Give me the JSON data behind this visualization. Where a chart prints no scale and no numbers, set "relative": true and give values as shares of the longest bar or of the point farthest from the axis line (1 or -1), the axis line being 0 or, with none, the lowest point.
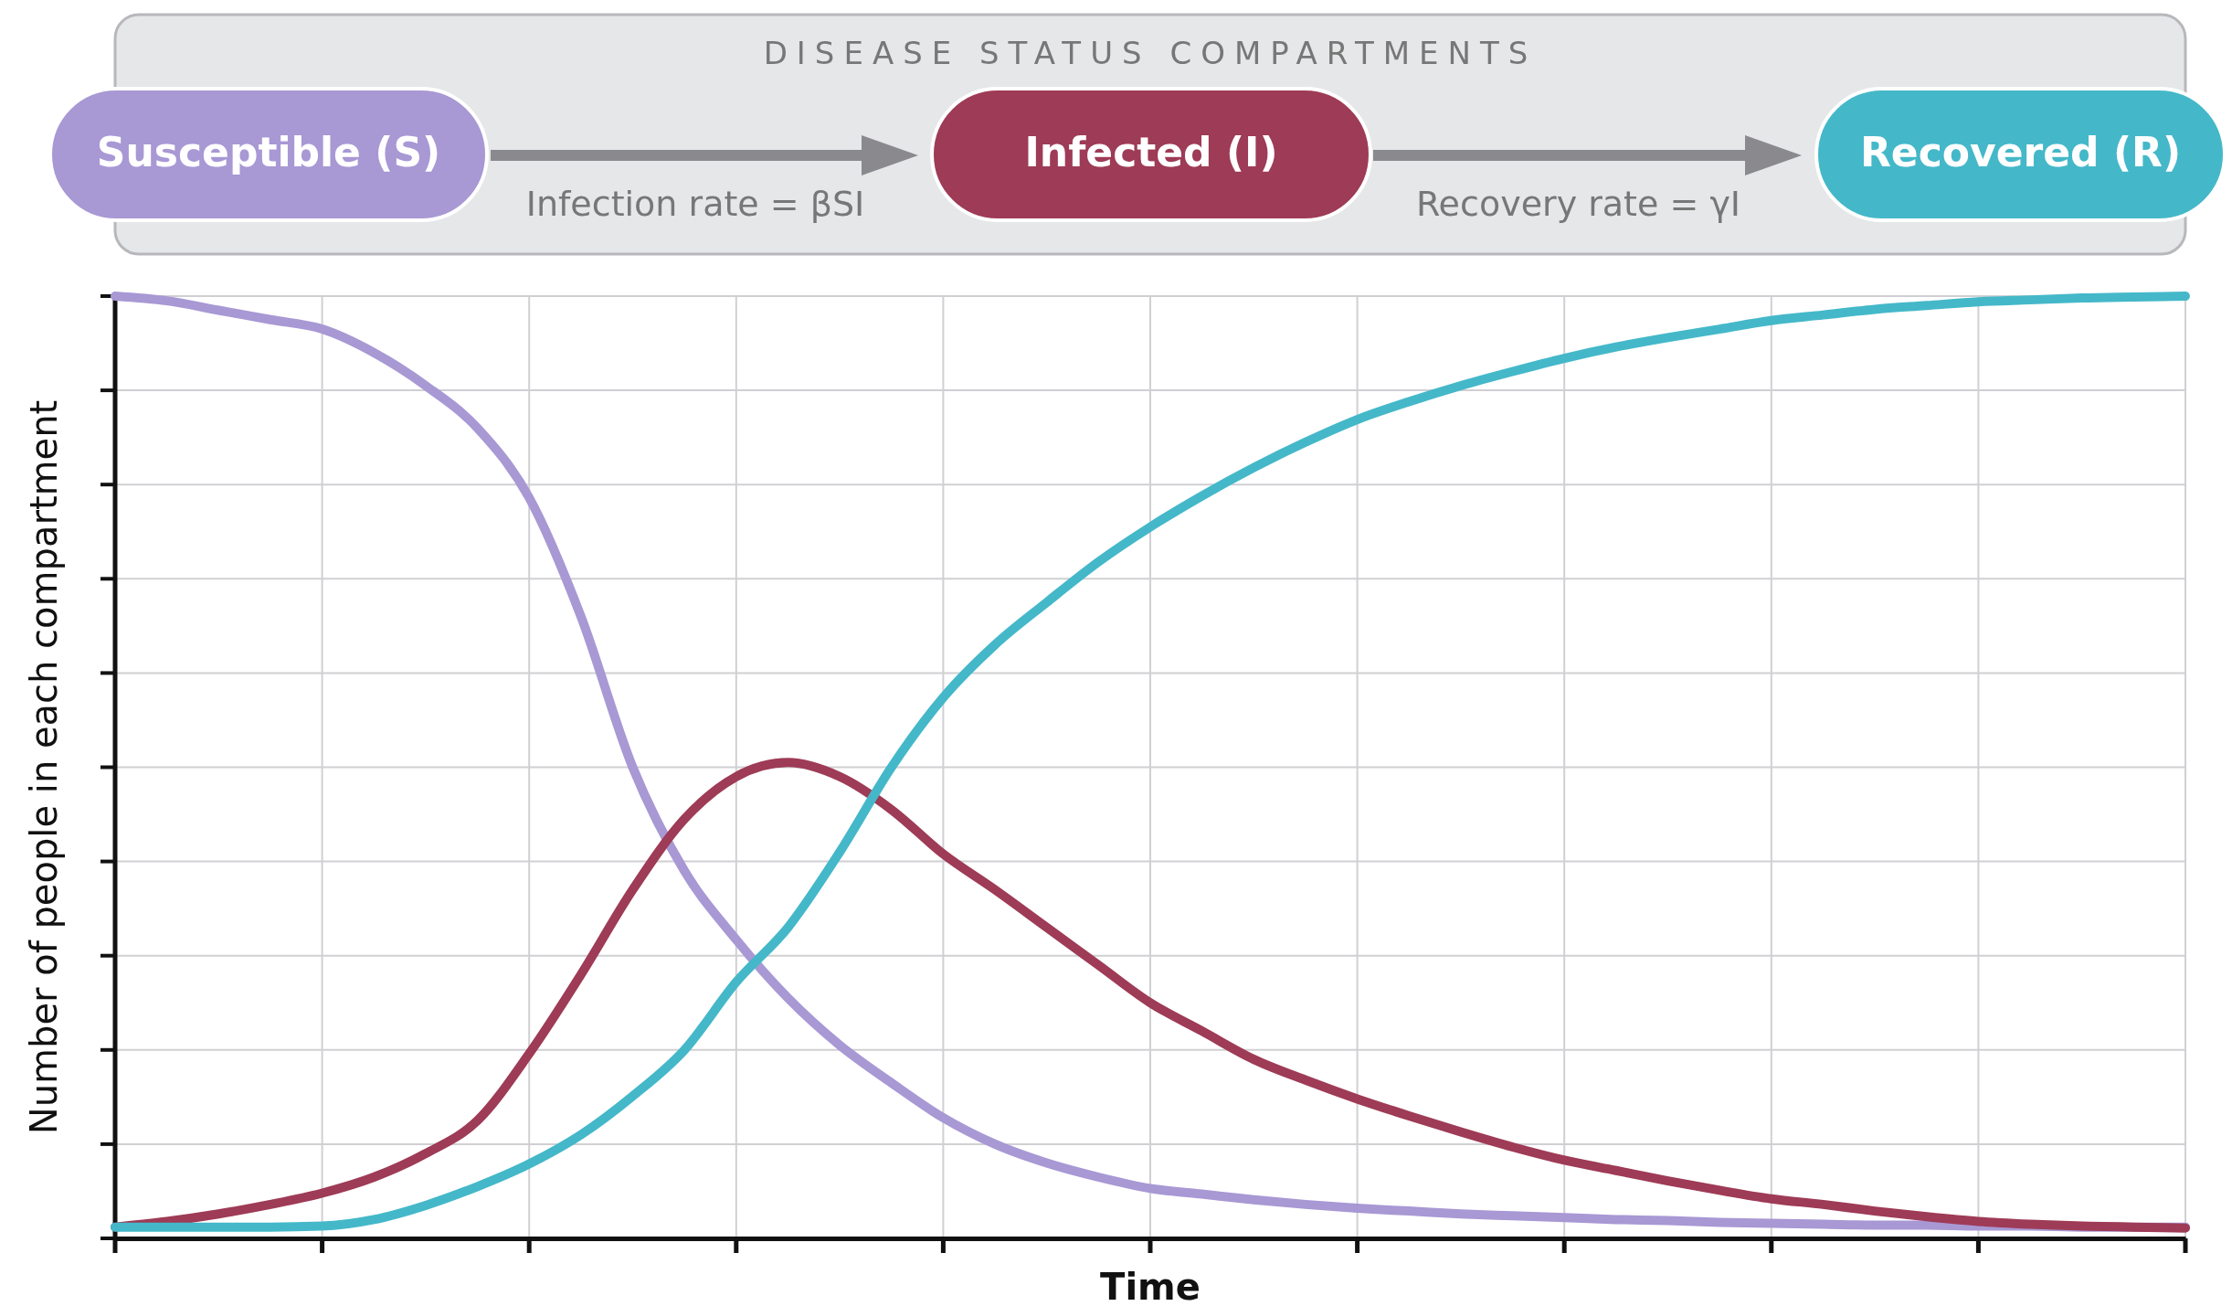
{
  "chart_data": {
    "type": "line",
    "relative": true,
    "legend_title": "DISEASE STATUS COMPARTMENTS",
    "legend": "top",
    "xlabel": "Time",
    "ylabel": "Number of people in each compartment",
    "grid": true,
    "line_style": "solid",
    "marker": "none",
    "annotations": [
      "Infection rate = βSI",
      "Recovery rate = γI"
    ],
    "categories": [
      null,
      null,
      null,
      null,
      null,
      null,
      null,
      null,
      null,
      null,
      null,
      null,
      null,
      null,
      null,
      null,
      null,
      null,
      null,
      null,
      null,
      null,
      null,
      null,
      null,
      null,
      null,
      null,
      null,
      null,
      null,
      null,
      null,
      null,
      null,
      null,
      null,
      null,
      null,
      null,
      null
    ],
    "series": [
      {
        "name": "Susceptible (S)",
        "color": "#a898d4",
        "values": [
          1.0,
          0.995,
          0.985,
          0.975,
          0.965,
          0.94,
          0.905,
          0.86,
          0.786,
          0.66,
          0.5,
          0.39,
          0.317,
          0.255,
          0.205,
          0.165,
          0.128,
          0.1,
          0.08,
          0.065,
          0.053,
          0.047,
          0.041,
          0.036,
          0.032,
          0.029,
          0.026,
          0.024,
          0.022,
          0.02,
          0.019,
          0.017,
          0.016,
          0.015,
          0.014,
          0.014,
          0.013,
          0.013,
          0.012,
          0.012,
          0.012
        ]
      },
      {
        "name": "Infected (I)",
        "color": "#9e3b56",
        "values": [
          0.012,
          0.018,
          0.026,
          0.036,
          0.048,
          0.065,
          0.09,
          0.125,
          0.196,
          0.28,
          0.37,
          0.445,
          0.49,
          0.505,
          0.49,
          0.455,
          0.408,
          0.37,
          0.33,
          0.29,
          0.25,
          0.22,
          0.19,
          0.168,
          0.148,
          0.13,
          0.113,
          0.097,
          0.083,
          0.072,
          0.061,
          0.051,
          0.042,
          0.036,
          0.029,
          0.023,
          0.018,
          0.015,
          0.013,
          0.012,
          0.011
        ]
      },
      {
        "name": "Recovered (R)",
        "color": "#44b8c9",
        "values": [
          0.012,
          0.012,
          0.012,
          0.012,
          0.013,
          0.02,
          0.035,
          0.055,
          0.079,
          0.11,
          0.151,
          0.2,
          0.272,
          0.33,
          0.41,
          0.5,
          0.574,
          0.63,
          0.675,
          0.718,
          0.755,
          0.788,
          0.818,
          0.845,
          0.869,
          0.888,
          0.905,
          0.92,
          0.934,
          0.946,
          0.956,
          0.965,
          0.974,
          0.98,
          0.986,
          0.99,
          0.994,
          0.996,
          0.998,
          0.999,
          1.0
        ]
      }
    ]
  }
}
